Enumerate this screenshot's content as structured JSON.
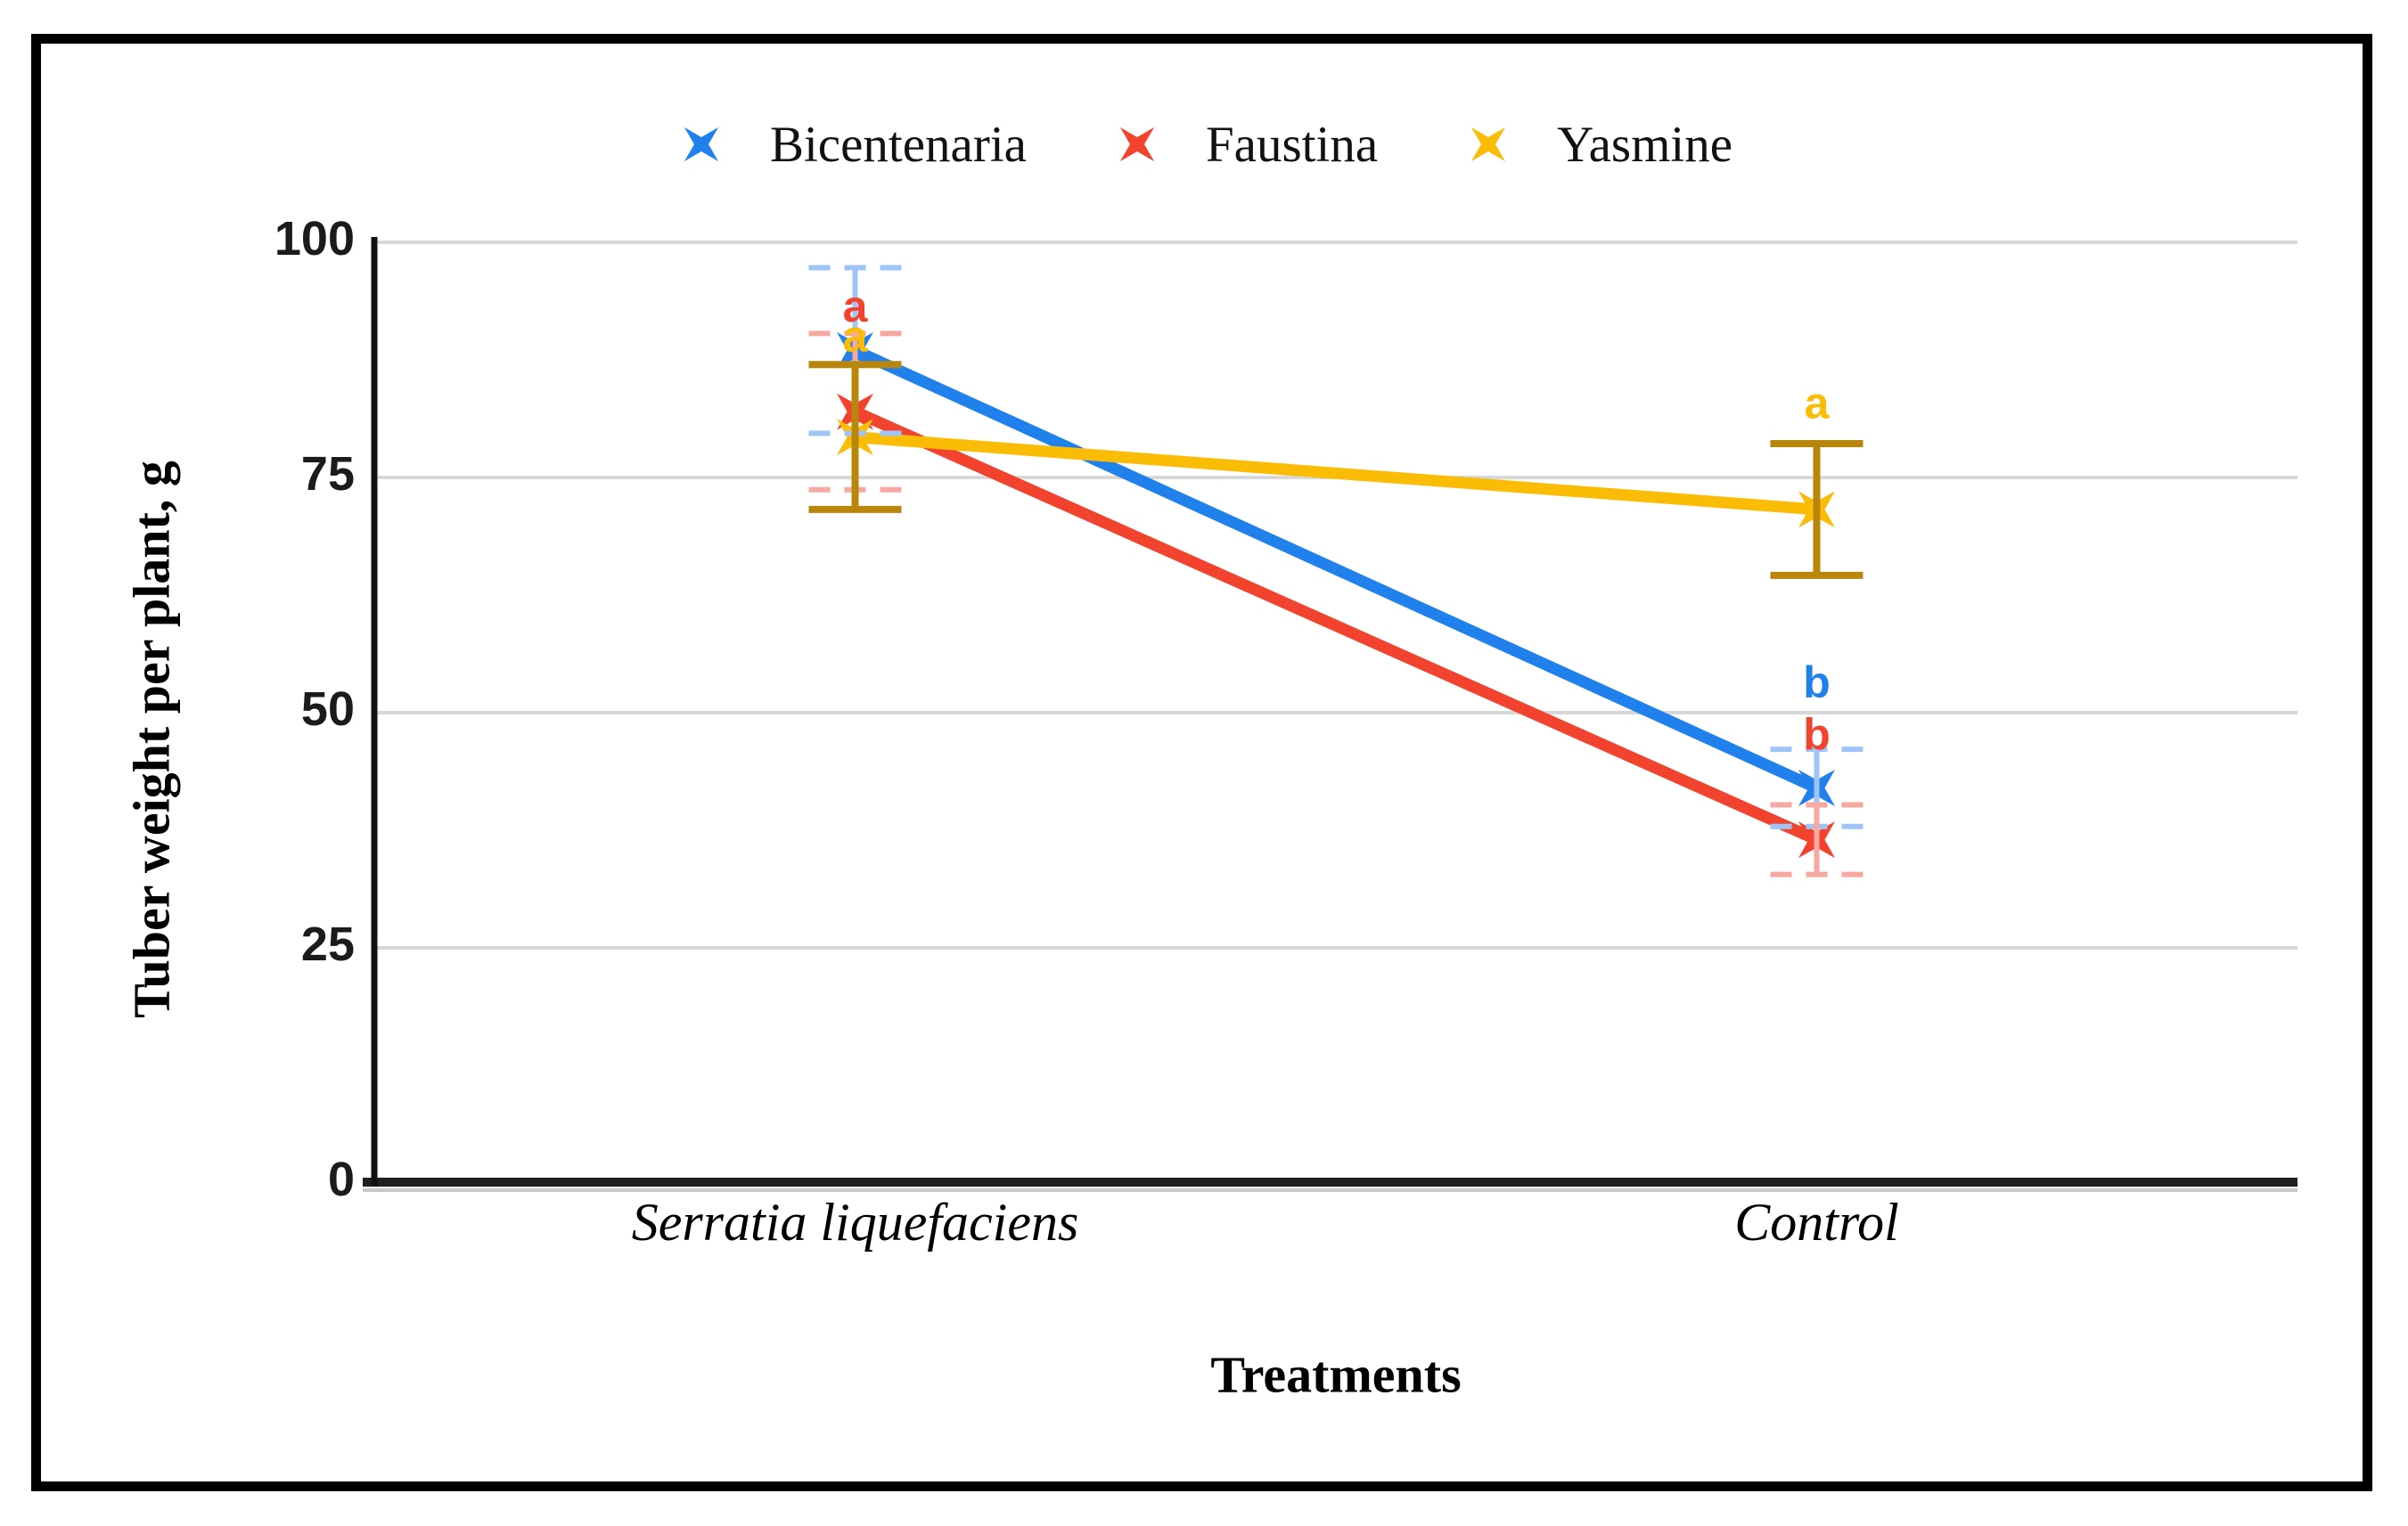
{
  "figure": {
    "border_color": "#000000",
    "background": "#ffffff"
  },
  "chart_data": {
    "type": "line",
    "title": "",
    "xlabel": "Treatments",
    "ylabel": "Tuber weight per plant, g",
    "categories": [
      "Serratia liquefaciens",
      "Control"
    ],
    "ylim": [
      0,
      100
    ],
    "yticks": [
      0,
      25,
      50,
      75,
      100
    ],
    "grid": true,
    "gridline_color": "#d8d8d8",
    "legend_position": "top",
    "legend_marker": "x-star",
    "series": [
      {
        "name": "Bicentenaria",
        "color": "#2080EC",
        "error_color": "#9FC5F8",
        "error_style": "dashed",
        "values": [
          88.5,
          42.0
        ],
        "errors": [
          8.8,
          4.1
        ]
      },
      {
        "name": "Faustina",
        "color": "#F2432F",
        "error_color": "#F7A8A1",
        "error_style": "dashed",
        "values": [
          82.0,
          36.5
        ],
        "errors": [
          8.3,
          3.7
        ]
      },
      {
        "name": "Yasmine",
        "color": "#FBBC05",
        "error_color": "#B8860B",
        "error_style": "solid",
        "values": [
          79.3,
          71.6
        ],
        "errors": [
          7.7,
          7.0
        ]
      }
    ],
    "annotations": [
      {
        "category": 0,
        "series": "Faustina",
        "label": "a",
        "y": 93.2
      },
      {
        "category": 0,
        "series": "Yasmine",
        "label": "a",
        "y": 90.0
      },
      {
        "category": 1,
        "series": "Yasmine",
        "label": "a",
        "y": 82.9
      },
      {
        "category": 1,
        "series": "Bicentenaria",
        "label": "b",
        "y": 53.2
      },
      {
        "category": 1,
        "series": "Faustina",
        "label": "b",
        "y": 47.7
      }
    ]
  }
}
